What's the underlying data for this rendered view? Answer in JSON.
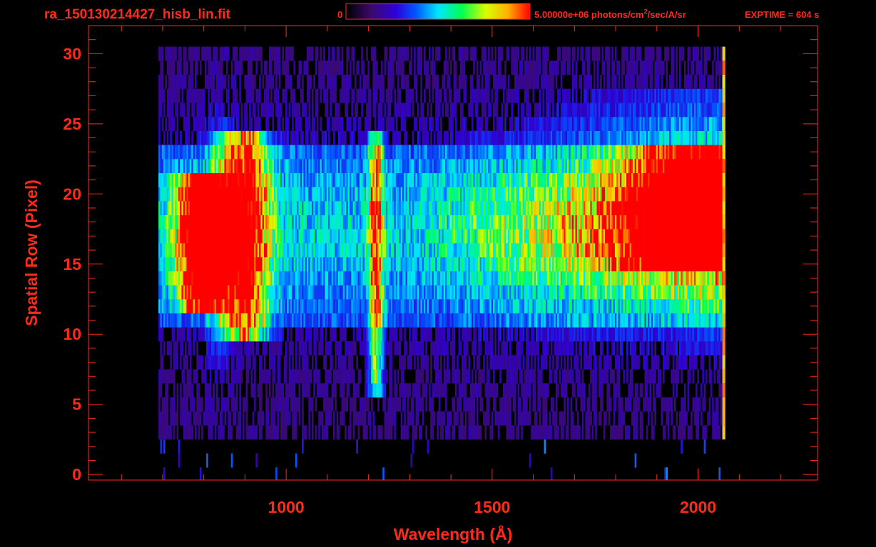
{
  "header": {
    "filename": "ra_150130214427_hisb_lin.fit",
    "colorbar_min_label": "0",
    "colorbar_max_label_main": "5.00000e+06 photons/cm",
    "colorbar_max_label_sup": "2",
    "colorbar_max_label_tail": "/sec/A/sr",
    "exptime_label": "EXPTIME = 604 s"
  },
  "colors": {
    "background": "#000000",
    "axis": "#ff2a1a",
    "colormap": [
      "#000000",
      "#3b0a6e",
      "#2d00d8",
      "#0057ff",
      "#00e5ff",
      "#00ff50",
      "#d8ff00",
      "#ffb000",
      "#ff0000"
    ]
  },
  "chart_data": {
    "type": "heatmap",
    "title": "",
    "xlabel": "Wavelength (Å)",
    "ylabel": "Spatial Row (Pixel)",
    "xlim": [
      520,
      2290
    ],
    "ylim": [
      -0.4,
      32
    ],
    "x_ticks": [
      1000,
      1500,
      2000
    ],
    "x_tick_labels": [
      "1000",
      "1500",
      "2000"
    ],
    "y_ticks": [
      0,
      5,
      10,
      15,
      20,
      25,
      30
    ],
    "y_tick_labels": [
      "0",
      "5",
      "10",
      "15",
      "20",
      "25",
      "30"
    ],
    "x_minor_step": 100,
    "y_minor_step": 1,
    "colorbar": {
      "min": 0,
      "max": 5000000,
      "units": "photons/cm²/sec/A/sr"
    },
    "data_extent": {
      "wavelength": [
        690,
        2065
      ],
      "rows": [
        0,
        30
      ]
    },
    "emission_features": [
      {
        "center_wavelength": 790,
        "rows": [
          12,
          21
        ],
        "peak_level": 1.0
      },
      {
        "center_wavelength": 900,
        "rows": [
          10,
          24
        ],
        "peak_level": 0.8
      },
      {
        "center_wavelength": 1216,
        "rows": [
          6,
          24
        ],
        "peak_level": 0.6
      },
      {
        "center_wavelength": 2000,
        "rows": [
          15,
          23
        ],
        "peak_level": 0.85
      }
    ],
    "grid": false
  }
}
